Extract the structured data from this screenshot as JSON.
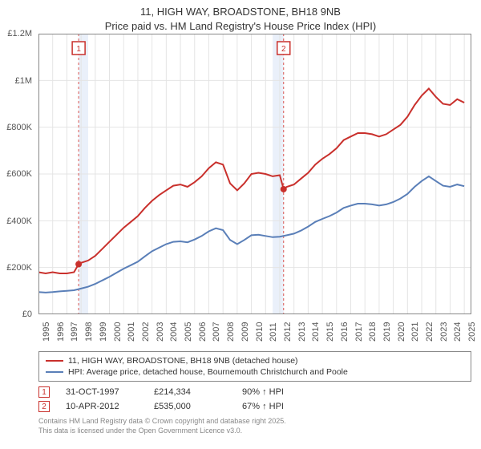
{
  "title_line1": "11, HIGH WAY, BROADSTONE, BH18 9NB",
  "title_line2": "Price paid vs. HM Land Registry's House Price Index (HPI)",
  "chart": {
    "type": "line",
    "background_color": "#ffffff",
    "plot_border_color": "#888888",
    "grid_color": "#e4e4e4",
    "y_axis": {
      "min": 0,
      "max": 1200000,
      "tick_step": 200000,
      "tick_labels": [
        "£0",
        "£200K",
        "£400K",
        "£600K",
        "£800K",
        "£1M",
        "£1.2M"
      ],
      "label_fontsize": 11
    },
    "x_axis": {
      "min": 1995,
      "max": 2025.5,
      "tick_step": 1,
      "tick_labels": [
        "1995",
        "1996",
        "1997",
        "1998",
        "1999",
        "2000",
        "2001",
        "2002",
        "2003",
        "2004",
        "2005",
        "2006",
        "2007",
        "2008",
        "2009",
        "2010",
        "2011",
        "2012",
        "2013",
        "2014",
        "2015",
        "2016",
        "2017",
        "2018",
        "2019",
        "2020",
        "2021",
        "2022",
        "2023",
        "2024",
        "2025"
      ],
      "label_fontsize": 11
    },
    "shaded_bands": [
      {
        "from": 1997.83,
        "to": 1998.5,
        "color": "#eaf0fa"
      },
      {
        "from": 2011.5,
        "to": 2012.27,
        "color": "#eaf0fa"
      }
    ],
    "event_markers": [
      {
        "id": "1",
        "x": 1997.83,
        "y": 214334,
        "color": "#c9302c",
        "dash_color": "#d9534f"
      },
      {
        "id": "2",
        "x": 2012.27,
        "y": 535000,
        "color": "#c9302c",
        "dash_color": "#d9534f"
      }
    ],
    "series": [
      {
        "name": "11, HIGH WAY, BROADSTONE, BH18 9NB (detached house)",
        "color": "#c9302c",
        "line_width": 2,
        "data": [
          [
            1995,
            180000
          ],
          [
            1995.5,
            175000
          ],
          [
            1996,
            180000
          ],
          [
            1996.5,
            175000
          ],
          [
            1997,
            175000
          ],
          [
            1997.5,
            180000
          ],
          [
            1997.83,
            214334
          ],
          [
            1998,
            220000
          ],
          [
            1998.5,
            230000
          ],
          [
            1999,
            250000
          ],
          [
            1999.5,
            280000
          ],
          [
            2000,
            310000
          ],
          [
            2000.5,
            340000
          ],
          [
            2001,
            370000
          ],
          [
            2001.5,
            395000
          ],
          [
            2002,
            420000
          ],
          [
            2002.5,
            455000
          ],
          [
            2003,
            485000
          ],
          [
            2003.5,
            510000
          ],
          [
            2004,
            530000
          ],
          [
            2004.5,
            550000
          ],
          [
            2005,
            555000
          ],
          [
            2005.5,
            545000
          ],
          [
            2006,
            565000
          ],
          [
            2006.5,
            590000
          ],
          [
            2007,
            625000
          ],
          [
            2007.5,
            650000
          ],
          [
            2008,
            640000
          ],
          [
            2008.5,
            560000
          ],
          [
            2009,
            530000
          ],
          [
            2009.5,
            560000
          ],
          [
            2010,
            600000
          ],
          [
            2010.5,
            605000
          ],
          [
            2011,
            600000
          ],
          [
            2011.5,
            590000
          ],
          [
            2012,
            595000
          ],
          [
            2012.27,
            535000
          ],
          [
            2012.5,
            545000
          ],
          [
            2013,
            555000
          ],
          [
            2013.5,
            580000
          ],
          [
            2014,
            605000
          ],
          [
            2014.5,
            640000
          ],
          [
            2015,
            665000
          ],
          [
            2015.5,
            685000
          ],
          [
            2016,
            710000
          ],
          [
            2016.5,
            745000
          ],
          [
            2017,
            760000
          ],
          [
            2017.5,
            775000
          ],
          [
            2018,
            775000
          ],
          [
            2018.5,
            770000
          ],
          [
            2019,
            760000
          ],
          [
            2019.5,
            770000
          ],
          [
            2020,
            790000
          ],
          [
            2020.5,
            810000
          ],
          [
            2021,
            845000
          ],
          [
            2021.5,
            895000
          ],
          [
            2022,
            935000
          ],
          [
            2022.5,
            965000
          ],
          [
            2023,
            930000
          ],
          [
            2023.5,
            900000
          ],
          [
            2024,
            895000
          ],
          [
            2024.5,
            920000
          ],
          [
            2025,
            905000
          ]
        ]
      },
      {
        "name": "HPI: Average price, detached house, Bournemouth Christchurch and Poole",
        "color": "#5a7fb8",
        "line_width": 2,
        "data": [
          [
            1995,
            95000
          ],
          [
            1995.5,
            93000
          ],
          [
            1996,
            95000
          ],
          [
            1996.5,
            98000
          ],
          [
            1997,
            100000
          ],
          [
            1997.5,
            103000
          ],
          [
            1998,
            110000
          ],
          [
            1998.5,
            118000
          ],
          [
            1999,
            130000
          ],
          [
            1999.5,
            145000
          ],
          [
            2000,
            160000
          ],
          [
            2000.5,
            178000
          ],
          [
            2001,
            195000
          ],
          [
            2001.5,
            210000
          ],
          [
            2002,
            225000
          ],
          [
            2002.5,
            248000
          ],
          [
            2003,
            270000
          ],
          [
            2003.5,
            285000
          ],
          [
            2004,
            300000
          ],
          [
            2004.5,
            310000
          ],
          [
            2005,
            312000
          ],
          [
            2005.5,
            308000
          ],
          [
            2006,
            320000
          ],
          [
            2006.5,
            335000
          ],
          [
            2007,
            355000
          ],
          [
            2007.5,
            368000
          ],
          [
            2008,
            360000
          ],
          [
            2008.5,
            318000
          ],
          [
            2009,
            300000
          ],
          [
            2009.5,
            318000
          ],
          [
            2010,
            338000
          ],
          [
            2010.5,
            340000
          ],
          [
            2011,
            335000
          ],
          [
            2011.5,
            330000
          ],
          [
            2012,
            332000
          ],
          [
            2012.5,
            338000
          ],
          [
            2013,
            345000
          ],
          [
            2013.5,
            358000
          ],
          [
            2014,
            375000
          ],
          [
            2014.5,
            395000
          ],
          [
            2015,
            408000
          ],
          [
            2015.5,
            420000
          ],
          [
            2016,
            435000
          ],
          [
            2016.5,
            455000
          ],
          [
            2017,
            465000
          ],
          [
            2017.5,
            473000
          ],
          [
            2018,
            473000
          ],
          [
            2018.5,
            470000
          ],
          [
            2019,
            465000
          ],
          [
            2019.5,
            470000
          ],
          [
            2020,
            480000
          ],
          [
            2020.5,
            495000
          ],
          [
            2021,
            515000
          ],
          [
            2021.5,
            545000
          ],
          [
            2022,
            570000
          ],
          [
            2022.5,
            590000
          ],
          [
            2023,
            570000
          ],
          [
            2023.5,
            550000
          ],
          [
            2024,
            545000
          ],
          [
            2024.5,
            555000
          ],
          [
            2025,
            548000
          ]
        ]
      }
    ]
  },
  "legend": {
    "items": [
      {
        "color": "#c9302c",
        "label": "11, HIGH WAY, BROADSTONE, BH18 9NB (detached house)"
      },
      {
        "color": "#5a7fb8",
        "label": "HPI: Average price, detached house, Bournemouth Christchurch and Poole"
      }
    ]
  },
  "events": [
    {
      "id": "1",
      "color": "#c9302c",
      "date": "31-OCT-1997",
      "price": "£214,334",
      "hpi": "90% ↑ HPI"
    },
    {
      "id": "2",
      "color": "#c9302c",
      "date": "10-APR-2012",
      "price": "£535,000",
      "hpi": "67% ↑ HPI"
    }
  ],
  "footer_line1": "Contains HM Land Registry data © Crown copyright and database right 2025.",
  "footer_line2": "This data is licensed under the Open Government Licence v3.0."
}
